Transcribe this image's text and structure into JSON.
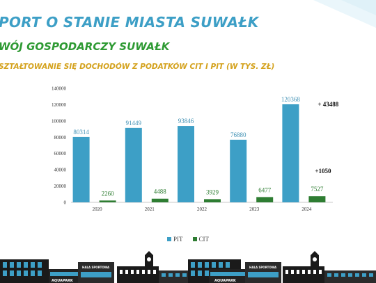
{
  "header": {
    "title": "PORT O STANIE MIASTA SUWAŁK",
    "subtitle": "WÓJ GOSPODARCZY SUWAŁK",
    "chart_title": "SZTAŁTOWANIE SIĘ DOCHODÓW Z PODATKÓW CIT I PIT (W TYS. ZŁ)"
  },
  "colors": {
    "pit": "#3d9fc6",
    "cit": "#2e7d32",
    "title_blue": "#3d9fc6",
    "title_green": "#2e9a33",
    "title_gold": "#d4a21d"
  },
  "chart_data": {
    "type": "bar",
    "categories": [
      "2020",
      "2021",
      "2022",
      "2023",
      "2024"
    ],
    "series": [
      {
        "name": "PIT",
        "values": [
          80314,
          91449,
          93846,
          76880,
          120368
        ]
      },
      {
        "name": "CIT",
        "values": [
          2260,
          4488,
          3929,
          6477,
          7527
        ]
      }
    ],
    "ylim": [
      0,
      140000
    ],
    "yticks": [
      0,
      20000,
      40000,
      60000,
      80000,
      100000,
      120000,
      140000
    ],
    "annotations": [
      "+ 43488",
      "+1050"
    ],
    "grid": false,
    "legend_position": "bottom"
  },
  "skyline": {
    "labels": [
      "AQUAPARK",
      "HALA SPORTOWA",
      "AQUAPARK",
      "HALA SPORTOWA"
    ]
  }
}
